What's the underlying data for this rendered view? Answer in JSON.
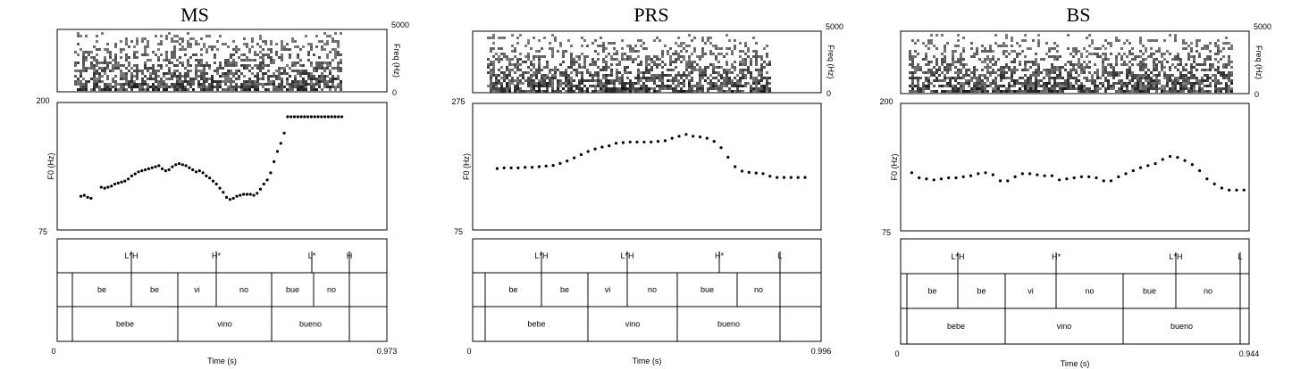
{
  "figure": {
    "panels": [
      {
        "title": "MS",
        "time_start": "0",
        "time_end": "0.973",
        "time_label": "Time (s)",
        "spec_label": "Freq (Hz)",
        "spec_max": "5000",
        "spec_min": "0",
        "f0_label": "F0 (Hz)",
        "f0_max": "200",
        "f0_min": "75"
      },
      {
        "title": "PRS",
        "time_start": "0",
        "time_end": "0.996",
        "time_label": "Time (s)",
        "spec_label": "Freq (Hz)",
        "spec_max": "5000",
        "spec_min": "0",
        "f0_label": "F0 (Hz)",
        "f0_max": "275",
        "f0_min": "75"
      },
      {
        "title": "BS",
        "time_start": "0",
        "time_end": "0.944",
        "time_label": "Time (s)",
        "spec_label": "Freq (Hz)",
        "spec_max": "5000",
        "spec_min": "0",
        "f0_label": "F0 (Hz)",
        "f0_max": "200",
        "f0_min": "75"
      }
    ]
  },
  "chart_data": [
    {
      "type": "scatter",
      "title": "MS",
      "xlabel": "Time (s)",
      "ylabel": "F0 (Hz)",
      "xlim": [
        0,
        0.973
      ],
      "ylim": [
        75,
        200
      ],
      "x": [
        0.07,
        0.08,
        0.09,
        0.1,
        0.13,
        0.14,
        0.15,
        0.16,
        0.17,
        0.18,
        0.19,
        0.2,
        0.21,
        0.22,
        0.23,
        0.24,
        0.25,
        0.26,
        0.27,
        0.28,
        0.29,
        0.3,
        0.31,
        0.32,
        0.33,
        0.34,
        0.35,
        0.36,
        0.37,
        0.38,
        0.39,
        0.4,
        0.41,
        0.42,
        0.43,
        0.44,
        0.45,
        0.46,
        0.47,
        0.48,
        0.49,
        0.5,
        0.51,
        0.52,
        0.53,
        0.54,
        0.55,
        0.56,
        0.57,
        0.58,
        0.59,
        0.6,
        0.61,
        0.62,
        0.63,
        0.64,
        0.65,
        0.66,
        0.67,
        0.68,
        0.69,
        0.7,
        0.71,
        0.72,
        0.73,
        0.74,
        0.75,
        0.76,
        0.77,
        0.78,
        0.79,
        0.8,
        0.81,
        0.82,
        0.83,
        0.84
      ],
      "y": [
        108,
        109,
        107,
        106,
        117,
        116,
        117,
        118,
        120,
        121,
        122,
        123,
        125,
        128,
        130,
        132,
        133,
        134,
        135,
        136,
        137,
        138,
        135,
        133,
        134,
        137,
        139,
        140,
        139,
        138,
        136,
        134,
        132,
        133,
        131,
        128,
        126,
        123,
        120,
        116,
        112,
        107,
        105,
        106,
        108,
        109,
        110,
        110,
        110,
        109,
        111,
        115,
        120,
        124,
        131,
        142,
        152,
        160,
        170,
        186,
        186,
        186,
        186,
        186,
        186,
        186,
        186,
        186,
        186,
        186,
        186,
        186,
        186,
        186,
        186,
        186
      ],
      "y_note_visible_trailing_points": [],
      "tones": [
        "L*H",
        "H*",
        "L*",
        "H"
      ],
      "syllables": [
        "be",
        "be",
        "vi",
        "no",
        "bue",
        "no"
      ],
      "words": [
        "bebe",
        "vino",
        "bueno"
      ]
    },
    {
      "type": "scatter",
      "title": "PRS",
      "xlabel": "Time (s)",
      "ylabel": "F0 (Hz)",
      "xlim": [
        0,
        0.996
      ],
      "ylim": [
        75,
        275
      ],
      "x": [
        0.07,
        0.09,
        0.11,
        0.13,
        0.15,
        0.17,
        0.19,
        0.21,
        0.23,
        0.25,
        0.27,
        0.29,
        0.31,
        0.33,
        0.35,
        0.37,
        0.39,
        0.41,
        0.43,
        0.45,
        0.47,
        0.49,
        0.51,
        0.53,
        0.55,
        0.57,
        0.59,
        0.61,
        0.63,
        0.65,
        0.67,
        0.69,
        0.71,
        0.73,
        0.75,
        0.77,
        0.79,
        0.81,
        0.83,
        0.85,
        0.87,
        0.89,
        0.91,
        0.93,
        0.95
      ],
      "y": [
        172,
        173,
        173,
        173,
        174,
        174,
        175,
        176,
        177,
        180,
        184,
        189,
        194,
        199,
        203,
        206,
        208,
        212,
        213,
        214,
        214,
        214,
        214,
        215,
        216,
        220,
        223,
        226,
        223,
        222,
        220,
        215,
        205,
        190,
        175,
        168,
        166,
        165,
        164,
        160,
        158,
        158,
        158,
        158,
        158
      ],
      "tones": [
        "L*H",
        "L*H",
        "H*",
        "L"
      ],
      "syllables": [
        "be",
        "be",
        "vi",
        "no",
        "bue",
        "no"
      ],
      "words": [
        "bebe",
        "vino",
        "bueno"
      ]
    },
    {
      "type": "scatter",
      "title": "BS",
      "xlabel": "Time (s)",
      "ylabel": "F0 (Hz)",
      "xlim": [
        0,
        0.944
      ],
      "ylim": [
        75,
        200
      ],
      "x": [
        0.03,
        0.05,
        0.07,
        0.09,
        0.11,
        0.13,
        0.15,
        0.17,
        0.19,
        0.21,
        0.23,
        0.25,
        0.27,
        0.29,
        0.31,
        0.33,
        0.35,
        0.37,
        0.39,
        0.41,
        0.43,
        0.45,
        0.47,
        0.49,
        0.51,
        0.53,
        0.55,
        0.57,
        0.59,
        0.61,
        0.63,
        0.65,
        0.67,
        0.69,
        0.71,
        0.73,
        0.75,
        0.77,
        0.79,
        0.81,
        0.83,
        0.85,
        0.87,
        0.89,
        0.91,
        0.93
      ],
      "y": [
        132,
        127,
        126,
        125,
        126,
        127,
        127,
        128,
        129,
        131,
        132,
        130,
        124,
        124,
        128,
        131,
        131,
        130,
        129,
        129,
        125,
        126,
        127,
        128,
        128,
        127,
        124,
        124,
        128,
        131,
        134,
        137,
        139,
        141,
        145,
        148,
        147,
        144,
        140,
        134,
        126,
        121,
        117,
        115,
        115,
        115
      ],
      "tones": [
        "L*H",
        "H*",
        "L*H",
        "L"
      ],
      "syllables": [
        "be",
        "be",
        "vi",
        "no",
        "bue",
        "no"
      ],
      "words": [
        "bebe",
        "vino",
        "bueno"
      ]
    }
  ]
}
